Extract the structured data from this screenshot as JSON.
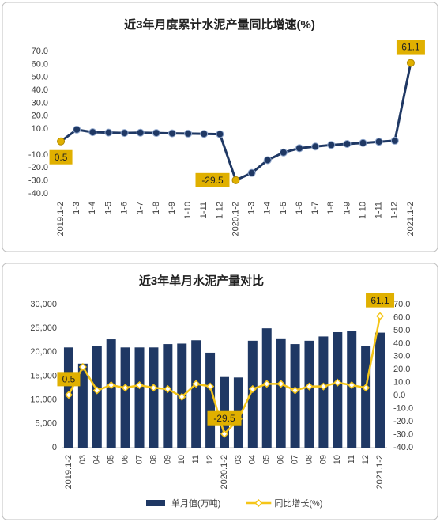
{
  "chart_data": [
    {
      "type": "line",
      "title": "近3年月度累计水泥产量同比增速(%)",
      "categories": [
        "2019.1-2",
        "1-3",
        "1-4",
        "1-5",
        "1-6",
        "1-7",
        "1-8",
        "1-9",
        "1-10",
        "1-11",
        "1-12",
        "2020.1-2",
        "1-3",
        "1-4",
        "1-5",
        "1-6",
        "1-7",
        "1-8",
        "1-9",
        "1-10",
        "1-11",
        "1-12",
        "2021.1-2"
      ],
      "series": [
        {
          "name": null,
          "color": "#1f3864",
          "values": [
            0.5,
            9.6,
            7.6,
            7.3,
            7.0,
            7.2,
            7.0,
            6.7,
            6.5,
            6.3,
            6.1,
            -29.5,
            -23.9,
            -14.0,
            -8.1,
            -4.8,
            -3.5,
            -2.3,
            -1.5,
            -0.7,
            0.2,
            1.0,
            61.1
          ],
          "value_labels": [
            "0.5",
            null,
            null,
            null,
            null,
            null,
            null,
            null,
            null,
            null,
            null,
            "-29.5",
            null,
            null,
            null,
            null,
            null,
            null,
            null,
            null,
            null,
            null,
            "61.1"
          ]
        }
      ],
      "ylim": [
        -40,
        70
      ],
      "yticks": [
        {
          "value": 70,
          "label": "70.0"
        },
        {
          "value": 60,
          "label": "60.0"
        },
        {
          "value": 50,
          "label": "50.0"
        },
        {
          "value": 40,
          "label": "40.0"
        },
        {
          "value": 30,
          "label": "30.0"
        },
        {
          "value": 20,
          "label": "20.0"
        },
        {
          "value": 10,
          "label": "10.0"
        },
        {
          "value": 0,
          "label": "-"
        },
        {
          "value": -10,
          "label": "-10.0"
        },
        {
          "value": -20,
          "label": "-20.0"
        },
        {
          "value": -30,
          "label": "-30.0"
        },
        {
          "value": -40,
          "label": "-40.0"
        }
      ],
      "label_color": "#e0b000",
      "grid": false
    },
    {
      "type": "bar",
      "title": "近3年单月水泥产量对比",
      "categories": [
        "2019.1-2",
        "03",
        "04",
        "05",
        "06",
        "07",
        "08",
        "09",
        "10",
        "11",
        "12",
        "2020.1-2",
        "03",
        "04",
        "05",
        "06",
        "07",
        "08",
        "09",
        "10",
        "11",
        "12",
        "2021.1-2"
      ],
      "series": [
        {
          "name": "单月值(万吨)",
          "type": "bar",
          "color": "#1f3864",
          "values": [
            21000,
            17600,
            21300,
            22700,
            21000,
            21000,
            21000,
            21700,
            21800,
            22500,
            19900,
            14800,
            14700,
            22400,
            25000,
            22900,
            21700,
            22400,
            23300,
            24200,
            24400,
            21300,
            24100
          ]
        },
        {
          "name": "同比增长(%)",
          "type": "line",
          "axis": "y2",
          "color": "#f5c518",
          "values": [
            0.5,
            22,
            4,
            8,
            6,
            8,
            6,
            5,
            -1,
            9,
            7,
            -29.5,
            -18,
            5,
            9,
            9,
            4,
            7,
            7,
            10,
            8,
            6,
            61.1
          ],
          "value_labels": [
            "0.5",
            null,
            null,
            null,
            null,
            null,
            null,
            null,
            null,
            null,
            null,
            "-29.5",
            null,
            null,
            null,
            null,
            null,
            null,
            null,
            null,
            null,
            null,
            "61.1"
          ]
        }
      ],
      "ylim": [
        0,
        30000
      ],
      "yticks": [
        {
          "value": 30000,
          "label": "30,000"
        },
        {
          "value": 25000,
          "label": "25,000"
        },
        {
          "value": 20000,
          "label": "20,000"
        },
        {
          "value": 15000,
          "label": "15,000"
        },
        {
          "value": 10000,
          "label": "10,000"
        },
        {
          "value": 5000,
          "label": "5,000"
        },
        0
      ],
      "y2lim": [
        -40,
        70
      ],
      "y2ticks": [
        {
          "value": 70,
          "label": "70.0"
        },
        {
          "value": 60,
          "label": "60.0"
        },
        {
          "value": 50,
          "label": "50.0"
        },
        {
          "value": 40,
          "label": "40.0"
        },
        {
          "value": 30,
          "label": "30.0"
        },
        {
          "value": 20,
          "label": "20.0"
        },
        {
          "value": 10,
          "label": "10.0"
        },
        {
          "value": 0,
          "label": "0.0"
        },
        {
          "value": -10,
          "label": "-10.0"
        },
        {
          "value": -20,
          "label": "-20.0"
        },
        {
          "value": -30,
          "label": "-30.0"
        },
        {
          "value": -40,
          "label": "-40.0"
        }
      ],
      "label_color": "#e0b000",
      "legend": "bottom",
      "grid": false
    }
  ]
}
